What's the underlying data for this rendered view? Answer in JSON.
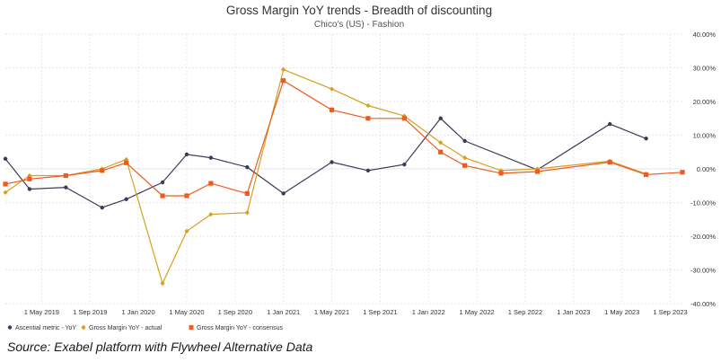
{
  "chart_data": {
    "type": "line",
    "title": "Gross Margin YoY trends - Breadth of discounting",
    "subtitle": "Chico's (US) - Fashion",
    "x": [
      "2019-02",
      "2019-04",
      "2019-07",
      "2019-10",
      "2019-12",
      "2020-03",
      "2020-05",
      "2020-07",
      "2020-10",
      "2021-01",
      "2021-05",
      "2021-08",
      "2021-11",
      "2022-02",
      "2022-04",
      "2022-07",
      "2022-10",
      "2023-01",
      "2023-04",
      "2023-07",
      "2023-10"
    ],
    "xticks": [
      "1 May 2019",
      "1 Sep 2019",
      "1 Jan 2020",
      "1 May 2020",
      "1 Sep 2020",
      "1 Jan 2021",
      "1 May 2021",
      "1 Sep 2021",
      "1 Jan 2022",
      "1 May 2022",
      "1 Sep 2022",
      "1 Jan 2023",
      "1 May 2023",
      "1 Sep 2023"
    ],
    "xtick_dates": [
      "2019-05",
      "2019-09",
      "2020-01",
      "2020-05",
      "2020-09",
      "2021-01",
      "2021-05",
      "2021-09",
      "2022-01",
      "2022-05",
      "2022-09",
      "2023-01",
      "2023-05",
      "2023-09"
    ],
    "yticks": [
      "40.00%",
      "30.00%",
      "20.00%",
      "10.00%",
      "0.00%",
      "-10.00%",
      "-20.00%",
      "-30.00%",
      "-40.00%"
    ],
    "ylim": [
      -40,
      40
    ],
    "y_unit": "%",
    "grid": true,
    "legend_position": "bottom-left",
    "series": [
      {
        "name": "Ascential metric - YoY",
        "color": "#3d3b5c",
        "marker": "circle",
        "values": [
          3.0,
          -6.0,
          -5.5,
          -11.5,
          -9.0,
          -4.0,
          4.3,
          3.3,
          0.5,
          -7.3,
          2.0,
          -0.5,
          1.3,
          15.0,
          8.3,
          null,
          -0.3,
          null,
          13.3,
          9.0,
          null
        ]
      },
      {
        "name": "Gross Margin YoY - actual",
        "color": "#d4a020",
        "marker": "diamond",
        "values": [
          -7.0,
          -2.0,
          -2.0,
          0.0,
          2.8,
          -34.0,
          -18.5,
          -13.5,
          -13.0,
          29.5,
          23.7,
          18.8,
          15.7,
          7.8,
          3.3,
          -0.5,
          0.0,
          null,
          2.3,
          -1.5,
          null
        ]
      },
      {
        "name": "Gross Margin YoY - consensus",
        "color": "#f05a1e",
        "marker": "square",
        "values": [
          -4.5,
          -3.0,
          -2.0,
          -0.5,
          1.8,
          -8.0,
          -8.0,
          -4.3,
          -7.3,
          26.2,
          17.5,
          15.0,
          15.0,
          5.0,
          1.0,
          -1.3,
          -0.8,
          null,
          2.0,
          -1.7,
          -1.0
        ]
      }
    ]
  },
  "source_text": "Source: Exabel platform with Flywheel Alternative Data"
}
